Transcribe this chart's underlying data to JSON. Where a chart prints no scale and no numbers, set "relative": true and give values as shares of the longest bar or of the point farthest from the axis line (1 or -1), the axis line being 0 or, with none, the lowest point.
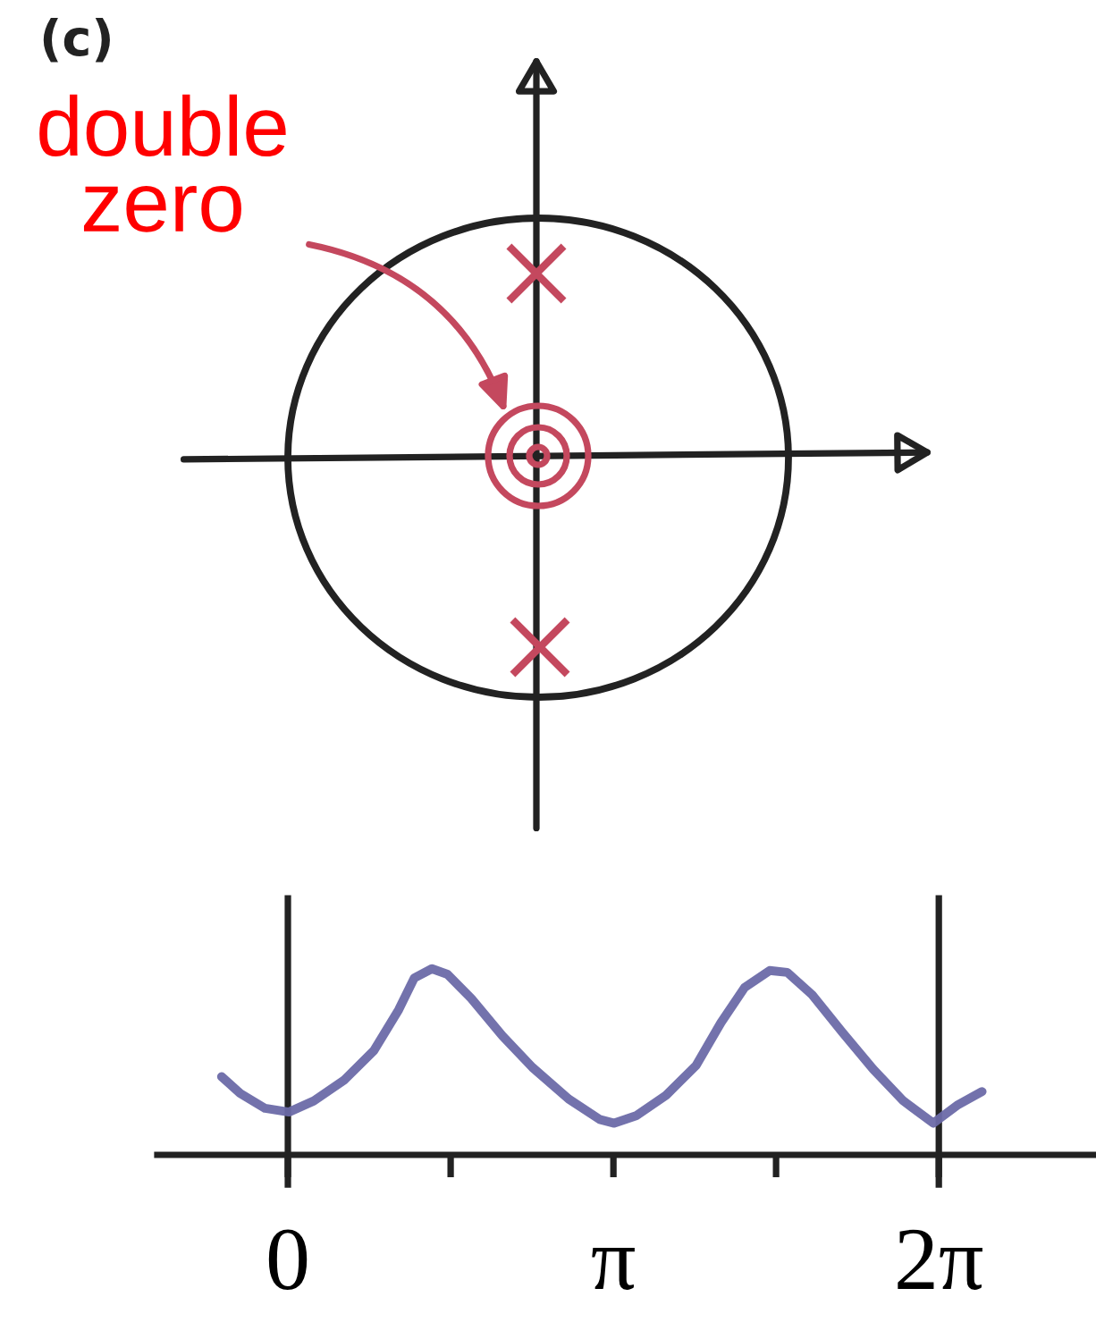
{
  "chart_data": [
    {
      "type": "other",
      "title": "(c)",
      "annotations": [
        "double zero"
      ]
    },
    {
      "type": "line",
      "relative": true,
      "color": "#6b6aa8",
      "x": [
        -0.64,
        -0.46,
        -0.22,
        0.01,
        0.25,
        0.54,
        0.83,
        1.07,
        1.22,
        1.39,
        1.54,
        1.77,
        2.07,
        2.36,
        2.71,
        3.01,
        3.15,
        3.36,
        3.65,
        3.94,
        4.18,
        4.41,
        4.65,
        4.82,
        5.06,
        5.35,
        5.65,
        5.94,
        6.23,
        6.47,
        6.7
      ],
      "values": [
        0.42,
        0.33,
        0.25,
        0.23,
        0.29,
        0.4,
        0.56,
        0.78,
        0.95,
        1.0,
        0.97,
        0.84,
        0.64,
        0.47,
        0.3,
        0.19,
        0.17,
        0.21,
        0.32,
        0.48,
        0.71,
        0.9,
        0.99,
        0.98,
        0.86,
        0.66,
        0.46,
        0.29,
        0.17,
        0.27,
        0.34
      ],
      "xlim": [
        -1.26,
        7.8
      ],
      "xticks": [
        0,
        {
          "value": 1.571,
          "label": null
        },
        {
          "value": 3.142,
          "label": "π"
        },
        {
          "value": 4.712,
          "label": null
        },
        {
          "value": 6.283,
          "label": "2π"
        }
      ],
      "ref_lines": [
        {
          "axis": "x",
          "value": 0,
          "color": "#222222"
        },
        {
          "axis": "x",
          "value": 6.283,
          "color": "#222222"
        }
      ],
      "tick_labels": "x"
    }
  ]
}
